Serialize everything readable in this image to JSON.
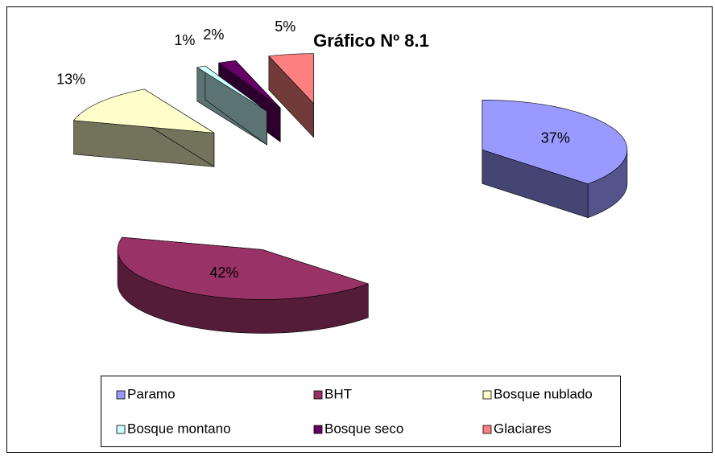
{
  "chart_data": {
    "type": "pie",
    "title": "Gráfico Nº 8.1",
    "categories": [
      "Paramo",
      "BHT",
      "Bosque nublado",
      "Bosque montano",
      "Bosque seco",
      "Glaciares"
    ],
    "values": [
      37,
      42,
      13,
      1,
      2,
      5
    ],
    "value_labels": [
      "37%",
      "42%",
      "13%",
      "1%",
      "2%",
      "5%"
    ],
    "colors": [
      "#9999ff",
      "#993366",
      "#ffffcc",
      "#ccffff",
      "#660066",
      "#ff8080"
    ],
    "legend": "bottom"
  }
}
